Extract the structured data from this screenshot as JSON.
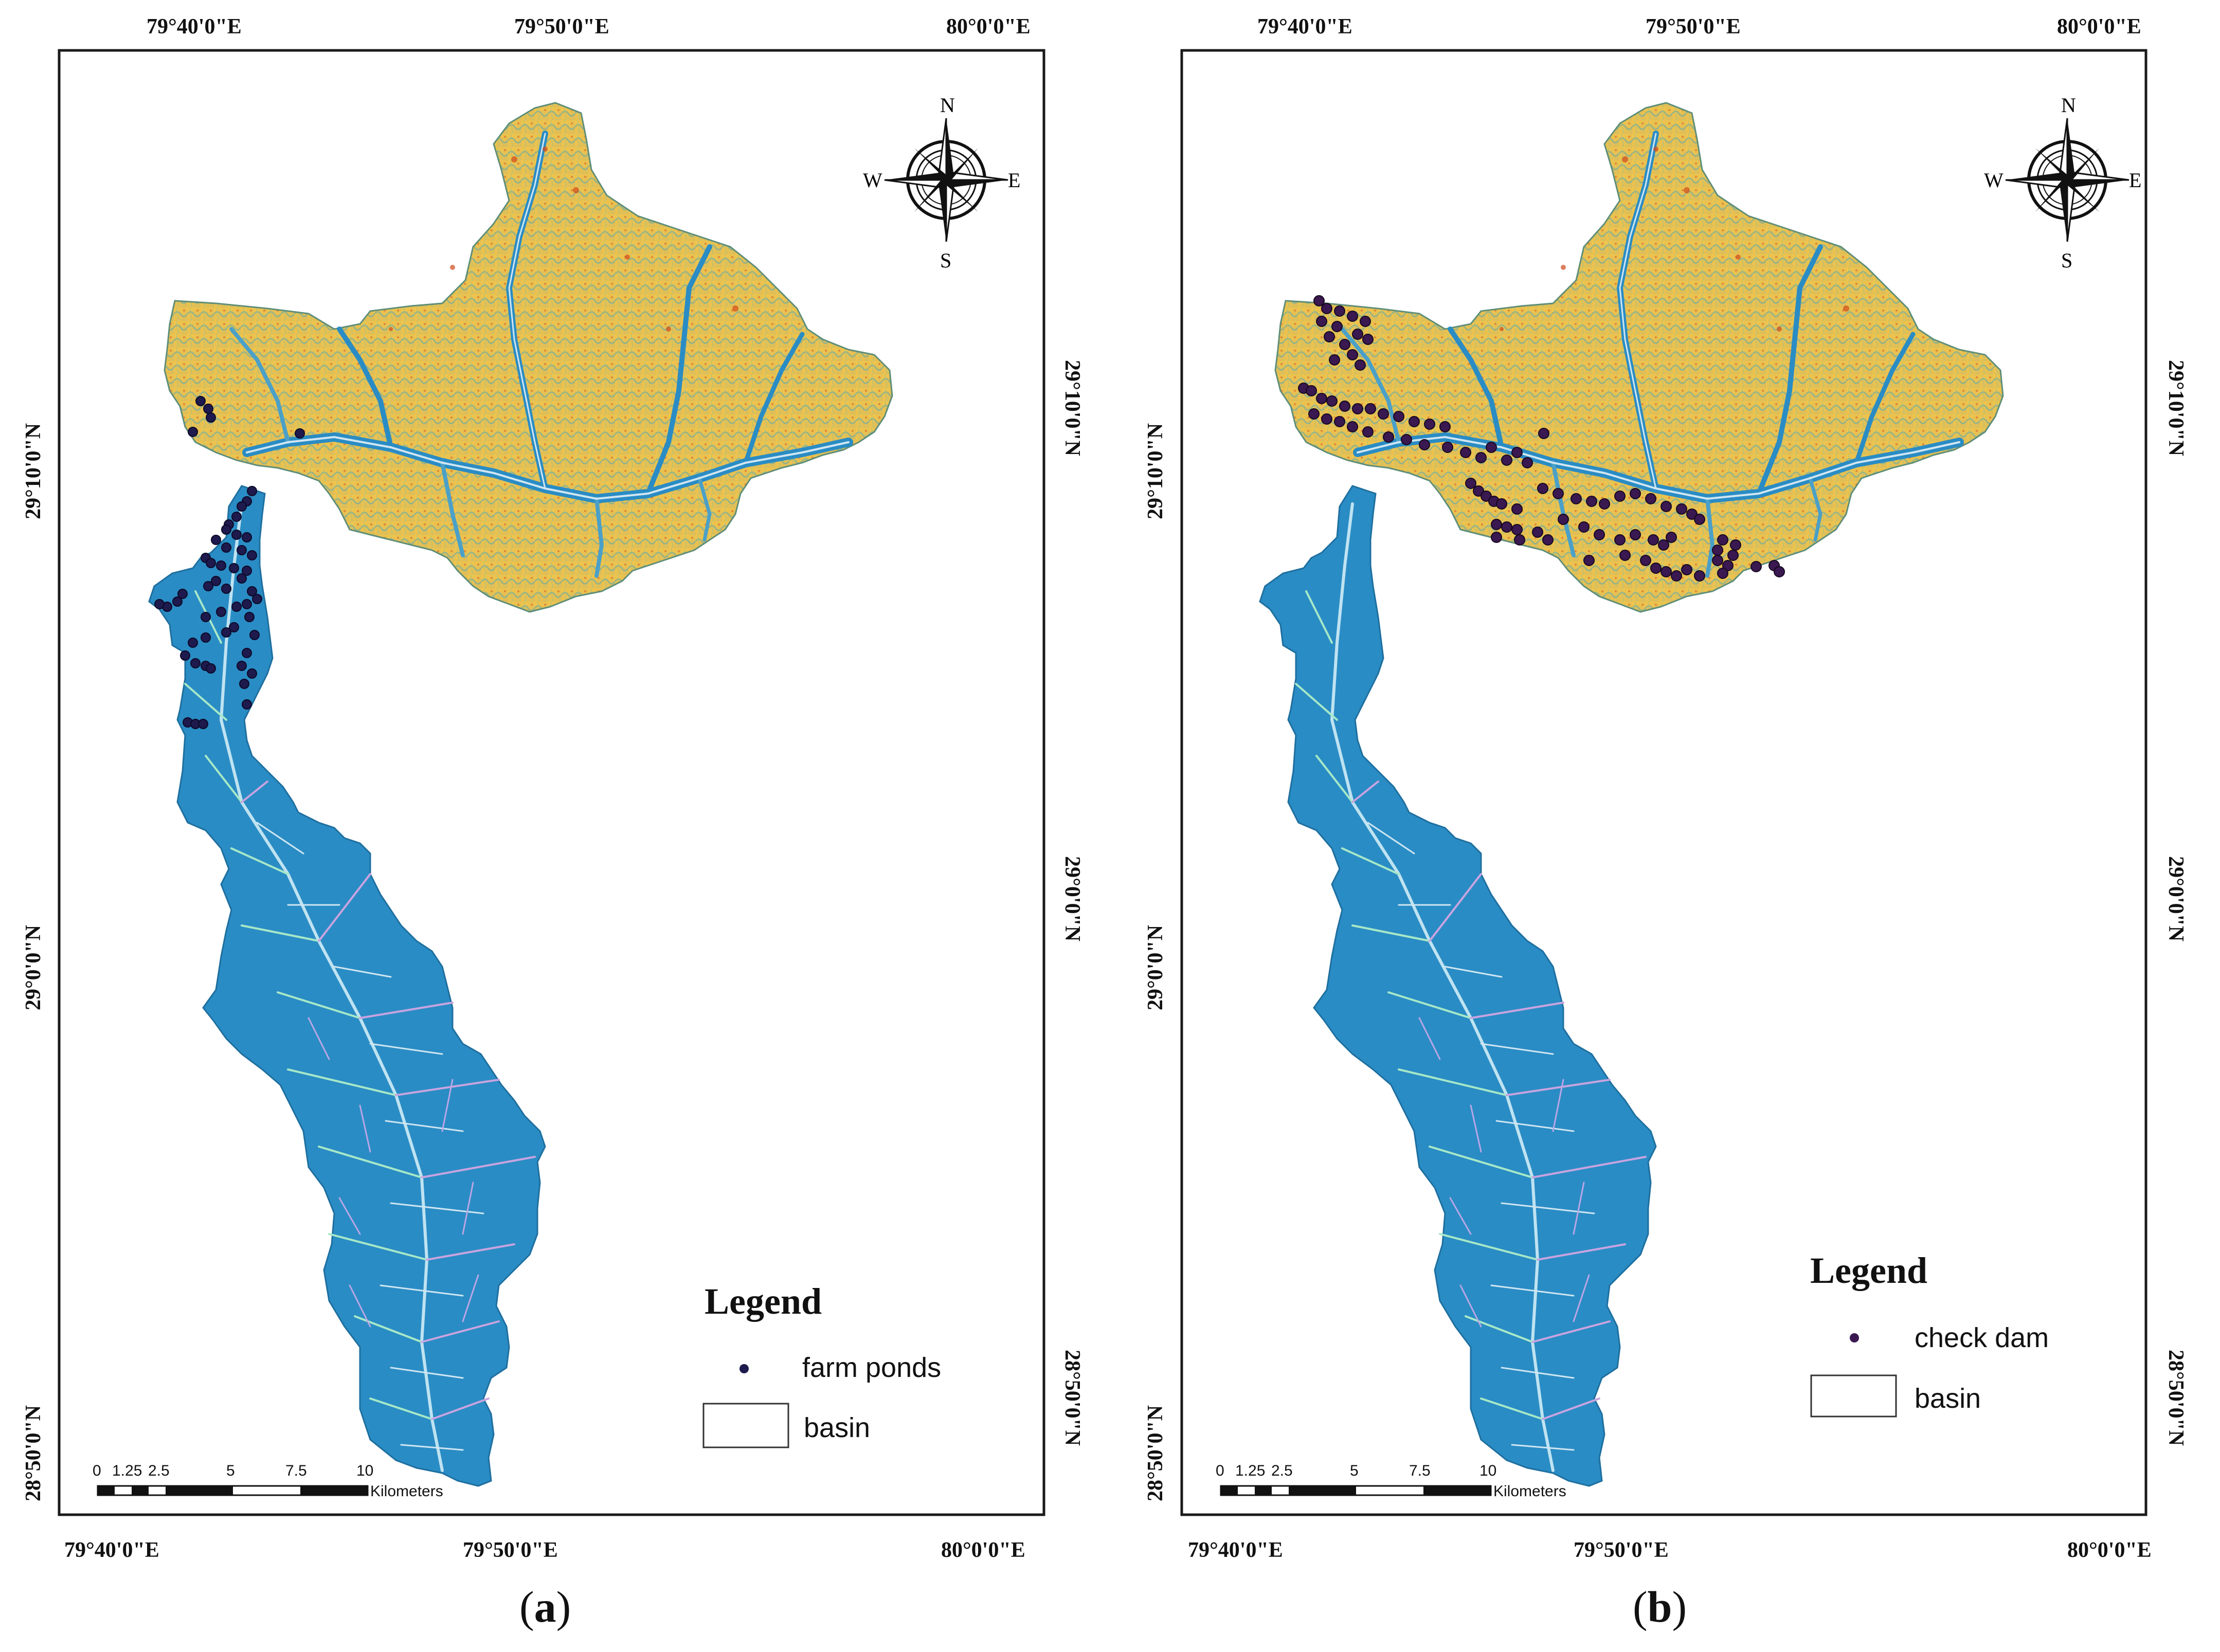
{
  "panels": [
    {
      "id": "a",
      "label_letter": "a",
      "legend": {
        "title": "Legend",
        "point_label": "farm ponds",
        "basin_label": "basin"
      }
    },
    {
      "id": "b",
      "label_letter": "b",
      "legend": {
        "title": "Legend",
        "point_label": "check dam",
        "basin_label": "basin"
      }
    }
  ],
  "axes": {
    "top_labels": [
      "79°40'0\"E",
      "79°50'0\"E",
      "80°0'0\"E"
    ],
    "bottom_labels": [
      "79°40'0\"E",
      "79°50'0\"E",
      "80°0'0\"E"
    ],
    "left_labels": [
      "29°10'0\"N",
      "29°0'0\"N",
      "28°50'0\"N"
    ],
    "right_labels": [
      "29°10'0\"N",
      "29°0'0\"N",
      "28°50'0\"N"
    ]
  },
  "north_arrow": {
    "n": "N",
    "s": "S",
    "e": "E",
    "w": "W"
  },
  "scale_bar": {
    "ticks": [
      "0",
      "1.25",
      "2.5",
      "5",
      "7.5",
      "10"
    ],
    "unit": "Kilometers"
  },
  "colors": {
    "lowland_blue": "#2a8cc4",
    "upland_yellow": "#f0c545",
    "upland_green": "#8fb48a",
    "stream_light": "#cfe6f2",
    "stream_violet": "#c8a4e0",
    "stream_green": "#a6e8c8",
    "point_fill": "#1e1a4d"
  }
}
